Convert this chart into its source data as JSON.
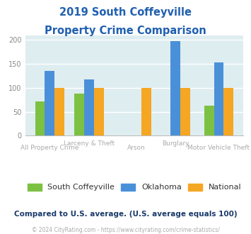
{
  "title_line1": "2019 South Coffeyville",
  "title_line2": "Property Crime Comparison",
  "title_color": "#2060b0",
  "series_names": [
    "South Coffeyville",
    "Oklahoma",
    "National"
  ],
  "series": {
    "South Coffeyville": [
      72,
      88,
      null,
      null,
      63
    ],
    "Oklahoma": [
      135,
      118,
      null,
      197,
      153
    ],
    "National": [
      100,
      100,
      100,
      100,
      100
    ]
  },
  "colors": {
    "South Coffeyville": "#7dc142",
    "Oklahoma": "#4a90d9",
    "National": "#f5a623"
  },
  "ylim": [
    0,
    210
  ],
  "yticks": [
    0,
    50,
    100,
    150,
    200
  ],
  "background_color": "#deedf0",
  "grid_color": "#ffffff",
  "footer_note": "Compared to U.S. average. (U.S. average equals 100)",
  "footer_note_color": "#1a3a6b",
  "copyright": "© 2024 CityRating.com - https://www.cityrating.com/crime-statistics/",
  "copyright_color": "#aaaaaa",
  "xlabel_color": "#aaaaaa",
  "bar_width": 0.25,
  "group_positions": [
    0.5,
    1.5,
    2.7,
    3.7,
    4.8
  ],
  "xlabel_labels": [
    "All Property Crime",
    "Larceny & Theft",
    "Arson",
    "Burglary",
    "Motor Vehicle Theft"
  ]
}
